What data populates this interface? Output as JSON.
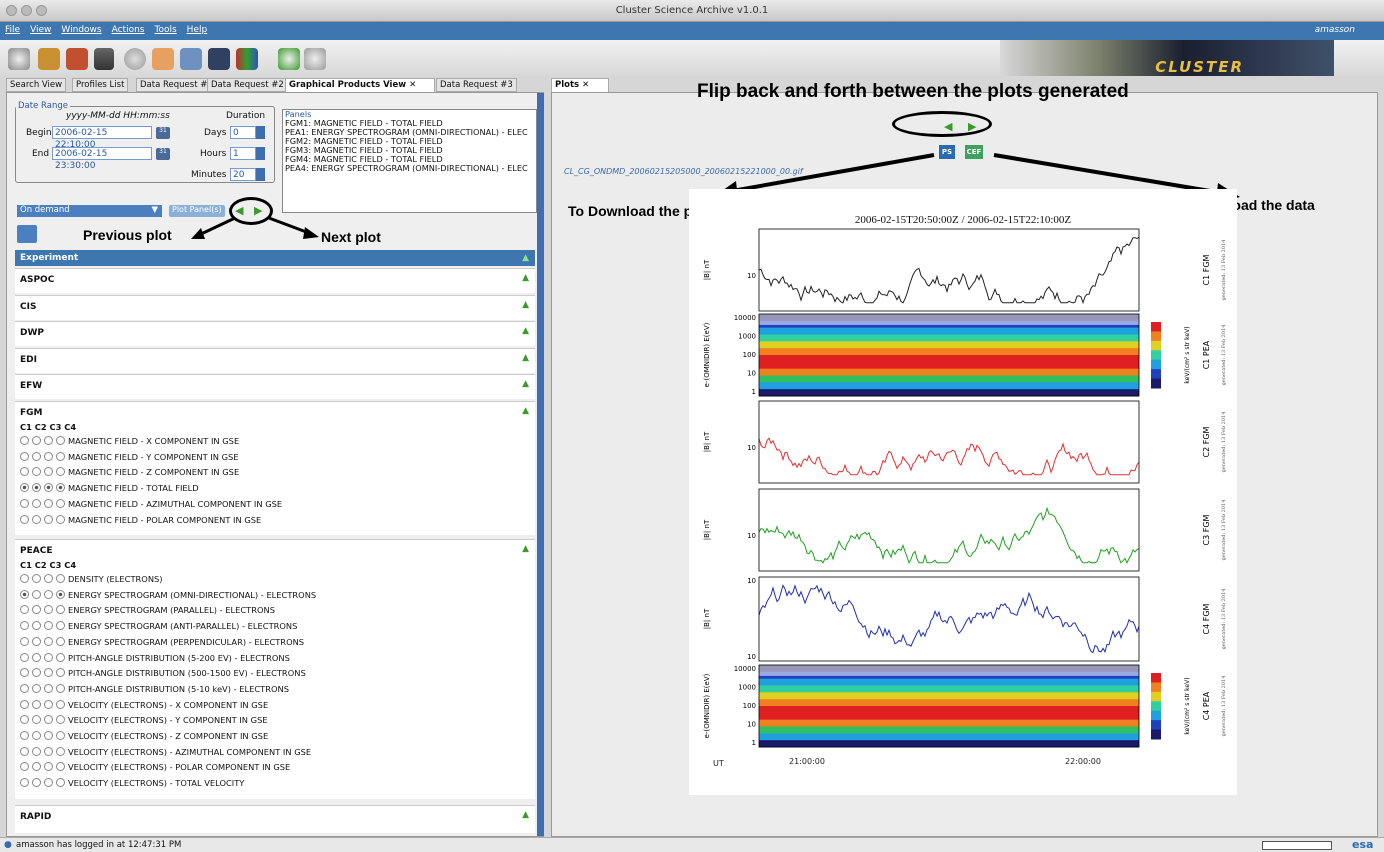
{
  "window": {
    "title": "Cluster Science Archive v1.0.1"
  },
  "menu": {
    "items": [
      "File",
      "View",
      "Windows",
      "Actions",
      "Tools",
      "Help"
    ],
    "user": "amasson"
  },
  "logo": {
    "text": "CLUSTER"
  },
  "left_tabs": [
    "Search View",
    "Profiles List",
    "Data Request #1",
    "Data Request #2",
    "Graphical Products View",
    "Data Request #3"
  ],
  "date_range": {
    "legend": "Date Range",
    "format": "yyyy-MM-dd HH:mm:ss",
    "duration_label": "Duration",
    "begin_label": "Begin",
    "begin_value": "2006-02-15 22:10:00",
    "end_label": "End",
    "end_value": "2006-02-15 23:30:00",
    "days_label": "Days",
    "days_value": "0",
    "hours_label": "Hours",
    "hours_value": "1",
    "minutes_label": "Minutes",
    "minutes_value": "20"
  },
  "panels": {
    "legend": "Panels",
    "items": [
      "FGM1: MAGNETIC FIELD - TOTAL FIELD",
      "PEA1: ENERGY SPECTROGRAM (OMNI-DIRECTIONAL) - ELEC",
      "FGM2: MAGNETIC FIELD - TOTAL FIELD",
      "FGM3: MAGNETIC FIELD - TOTAL FIELD",
      "FGM4: MAGNETIC FIELD - TOTAL FIELD",
      "PEA4: ENERGY SPECTROGRAM (OMNI-DIRECTIONAL) - ELEC"
    ]
  },
  "controls": {
    "mode": "On demand",
    "plot_button": "Plot Panel(s)"
  },
  "annotations": {
    "previous": "Previous plot",
    "next": "Next plot",
    "flip": "Flip back and forth between the plots generated",
    "download_plot": "To Download the plot",
    "download_data": "To download the data"
  },
  "experiment": {
    "header": "Experiment",
    "sections": [
      "ASPOC",
      "CIS",
      "DWP",
      "EDI",
      "EFW"
    ]
  },
  "fgm": {
    "name": "FGM",
    "sc": "C1 C2 C3 C4",
    "rows": [
      {
        "label": "MAGNETIC FIELD - X COMPONENT IN GSE",
        "sel": [
          0,
          0,
          0,
          0
        ]
      },
      {
        "label": "MAGNETIC FIELD - Y COMPONENT IN GSE",
        "sel": [
          0,
          0,
          0,
          0
        ]
      },
      {
        "label": "MAGNETIC FIELD - Z COMPONENT IN GSE",
        "sel": [
          0,
          0,
          0,
          0
        ]
      },
      {
        "label": "MAGNETIC FIELD - TOTAL FIELD",
        "sel": [
          1,
          1,
          1,
          1
        ]
      },
      {
        "label": "MAGNETIC FIELD - AZIMUTHAL COMPONENT IN GSE",
        "sel": [
          0,
          0,
          0,
          0
        ]
      },
      {
        "label": "MAGNETIC FIELD - POLAR COMPONENT IN GSE",
        "sel": [
          0,
          0,
          0,
          0
        ]
      }
    ]
  },
  "peace": {
    "name": "PEACE",
    "sc": "C1 C2 C3 C4",
    "rows": [
      {
        "label": "DENSITY (ELECTRONS)",
        "sel": [
          0,
          0,
          0,
          0
        ]
      },
      {
        "label": "ENERGY SPECTROGRAM (OMNI-DIRECTIONAL) - ELECTRONS",
        "sel": [
          1,
          0,
          0,
          1
        ]
      },
      {
        "label": "ENERGY SPECTROGRAM (PARALLEL) - ELECTRONS",
        "sel": [
          0,
          0,
          0,
          0
        ]
      },
      {
        "label": "ENERGY SPECTROGRAM (ANTI-PARALLEL) - ELECTRONS",
        "sel": [
          0,
          0,
          0,
          0
        ]
      },
      {
        "label": "ENERGY SPECTROGRAM (PERPENDICULAR) - ELECTRONS",
        "sel": [
          0,
          0,
          0,
          0
        ]
      },
      {
        "label": "PITCH-ANGLE DISTRIBUTION (5-200 EV) - ELECTRONS",
        "sel": [
          0,
          0,
          0,
          0
        ]
      },
      {
        "label": "PITCH-ANGLE DISTRIBUTION (500-1500 EV) - ELECTRONS",
        "sel": [
          0,
          0,
          0,
          0
        ]
      },
      {
        "label": "PITCH-ANGLE DISTRIBUTION (5-10 keV) - ELECTRONS",
        "sel": [
          0,
          0,
          0,
          0
        ]
      },
      {
        "label": "VELOCITY (ELECTRONS) - X COMPONENT IN GSE",
        "sel": [
          0,
          0,
          0,
          0
        ]
      },
      {
        "label": "VELOCITY (ELECTRONS) - Y COMPONENT IN GSE",
        "sel": [
          0,
          0,
          0,
          0
        ]
      },
      {
        "label": "VELOCITY (ELECTRONS) - Z COMPONENT IN GSE",
        "sel": [
          0,
          0,
          0,
          0
        ]
      },
      {
        "label": "VELOCITY (ELECTRONS) - AZIMUTHAL COMPONENT IN GSE",
        "sel": [
          0,
          0,
          0,
          0
        ]
      },
      {
        "label": "VELOCITY (ELECTRONS) - POLAR COMPONENT IN GSE",
        "sel": [
          0,
          0,
          0,
          0
        ]
      },
      {
        "label": "VELOCITY (ELECTRONS) - TOTAL VELOCITY",
        "sel": [
          0,
          0,
          0,
          0
        ]
      }
    ]
  },
  "rapid": {
    "name": "RAPID"
  },
  "plots": {
    "tab": "Plots",
    "filename": "CL_CG_ONDMD_20060215205000_20060215221000_00.gif",
    "ps": "PS",
    "cef": "CEF",
    "title": "2006-02-15T20:50:00Z / 2006-02-15T22:10:00Z",
    "ut": "UT",
    "xticks": [
      "21:00:00",
      "22:00:00"
    ],
    "generated": "generated: 13 Feb 2014",
    "panels": [
      {
        "ylabel": "|B| nT",
        "name": "C1 FGM",
        "color": "#222222",
        "ticks": [
          "10"
        ]
      },
      {
        "ylabel": "e-(OMNIDIR) E(eV)",
        "name": "C1 PEA",
        "ticks": [
          "10000",
          "1000",
          "100",
          "10",
          "1"
        ],
        "cb": "keV/(cm² s str keV)"
      },
      {
        "ylabel": "|B| nT",
        "name": "C2 FGM",
        "color": "#e03030",
        "ticks": [
          "10"
        ]
      },
      {
        "ylabel": "|B| nT",
        "name": "C3 FGM",
        "color": "#20a020",
        "ticks": [
          "10"
        ]
      },
      {
        "ylabel": "|B| nT",
        "name": "C4 FGM",
        "color": "#2030b0",
        "ticks": [
          "10",
          "10"
        ]
      },
      {
        "ylabel": "e-(OMNIDIR) E(eV)",
        "name": "C4 PEA",
        "ticks": [
          "10000",
          "1000",
          "100",
          "10",
          "1"
        ],
        "cb": "keV/(cm² s str keV)"
      }
    ]
  },
  "status": {
    "text": "amasson has logged in at 12:47:31 PM",
    "brand": "esa"
  },
  "colors": {
    "accent": "#3e76b0",
    "green_arrow": "#3a9a2a"
  }
}
